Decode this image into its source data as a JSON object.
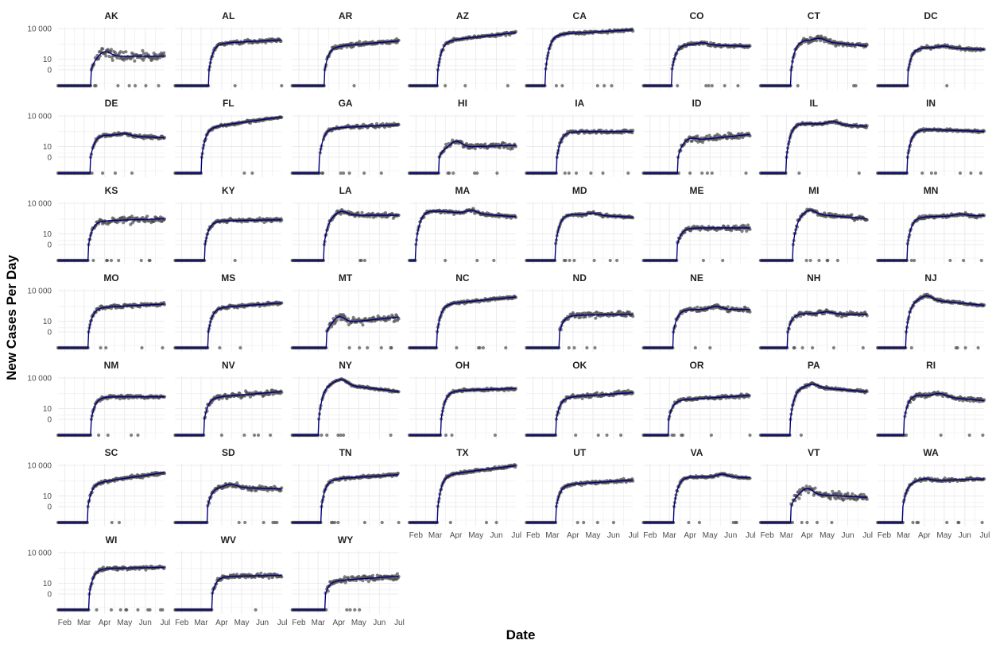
{
  "chart_data": {
    "type": "scatter",
    "xlabel": "Date",
    "ylabel": "New Cases Per Day",
    "y_scale": "pseudo-log",
    "y_ticks": [
      0,
      10,
      10000
    ],
    "y_tick_labels": [
      "0",
      "10",
      "10 000"
    ],
    "x_ticks": [
      "2020-02-01",
      "2020-03-01",
      "2020-04-01",
      "2020-05-01",
      "2020-06-01",
      "2020-07-01"
    ],
    "x_tick_labels": [
      "Feb",
      "Mar",
      "Apr",
      "May",
      "Jun",
      "Jul"
    ],
    "xlim": [
      "2020-01-22",
      "2020-06-30"
    ],
    "grid": true,
    "series_colors": {
      "points": "#4d4d4d",
      "smooth_line": "#000080",
      "grid": "#ebebeb"
    },
    "panels": [
      {
        "state": "AK",
        "onset": "2020-03-12",
        "plateau": 20,
        "peak": "2020-04-01",
        "ampl": 0.5,
        "noise": 0.4,
        "trend": 0
      },
      {
        "state": "AL",
        "onset": "2020-03-13",
        "plateau": 400,
        "peak": null,
        "ampl": 0,
        "noise": 0.15,
        "trend": 0.3
      },
      {
        "state": "AR",
        "onset": "2020-03-11",
        "plateau": 200,
        "peak": null,
        "ampl": 0,
        "noise": 0.2,
        "trend": 0.5
      },
      {
        "state": "AZ",
        "onset": "2020-03-05",
        "plateau": 800,
        "peak": null,
        "ampl": 0,
        "noise": 0.15,
        "trend": 0.7
      },
      {
        "state": "CA",
        "onset": "2020-02-20",
        "plateau": 3000,
        "peak": null,
        "ampl": 0,
        "noise": 0.12,
        "trend": 0.4
      },
      {
        "state": "CO",
        "onset": "2020-03-05",
        "plateau": 300,
        "peak": "2020-04-20",
        "ampl": 0.2,
        "noise": 0.15,
        "trend": -0.2
      },
      {
        "state": "CT",
        "onset": "2020-03-08",
        "plateau": 800,
        "peak": "2020-04-20",
        "ampl": 0.3,
        "noise": 0.2,
        "trend": -0.6
      },
      {
        "state": "DC",
        "onset": "2020-03-08",
        "plateau": 150,
        "peak": "2020-05-01",
        "ampl": 0.2,
        "noise": 0.15,
        "trend": -0.2
      },
      {
        "state": "DE",
        "onset": "2020-03-11",
        "plateau": 150,
        "peak": "2020-05-01",
        "ampl": 0.2,
        "noise": 0.15,
        "trend": -0.3
      },
      {
        "state": "FL",
        "onset": "2020-03-02",
        "plateau": 1000,
        "peak": null,
        "ampl": 0,
        "noise": 0.12,
        "trend": 0.9
      },
      {
        "state": "GA",
        "onset": "2020-03-03",
        "plateau": 700,
        "peak": null,
        "ampl": 0,
        "noise": 0.15,
        "trend": 0.3
      },
      {
        "state": "HI",
        "onset": "2020-03-07",
        "plateau": 8,
        "peak": "2020-04-01",
        "ampl": 0.6,
        "noise": 0.3,
        "trend": 0.2
      },
      {
        "state": "IA",
        "onset": "2020-03-08",
        "plateau": 300,
        "peak": null,
        "ampl": 0,
        "noise": 0.15,
        "trend": 0
      },
      {
        "state": "ID",
        "onset": "2020-03-14",
        "plateau": 40,
        "peak": "2020-04-01",
        "ampl": 0.3,
        "noise": 0.3,
        "trend": 0.6
      },
      {
        "state": "IL",
        "onset": "2020-03-01",
        "plateau": 2000,
        "peak": "2020-05-10",
        "ampl": 0.3,
        "noise": 0.12,
        "trend": -0.3
      },
      {
        "state": "IN",
        "onset": "2020-03-07",
        "plateau": 500,
        "peak": null,
        "ampl": 0,
        "noise": 0.12,
        "trend": -0.2
      },
      {
        "state": "KS",
        "onset": "2020-03-08",
        "plateau": 200,
        "peak": null,
        "ampl": 0,
        "noise": 0.3,
        "trend": 0.2
      },
      {
        "state": "KY",
        "onset": "2020-03-07",
        "plateau": 200,
        "peak": null,
        "ampl": 0,
        "noise": 0.15,
        "trend": 0.1
      },
      {
        "state": "LA",
        "onset": "2020-03-10",
        "plateau": 700,
        "peak": "2020-04-05",
        "ampl": 0.4,
        "noise": 0.2,
        "trend": 0
      },
      {
        "state": "MA",
        "onset": "2020-02-01",
        "plateau": 2000,
        "peak": "2020-04-25",
        "ampl": 0.3,
        "noise": 0.15,
        "trend": -0.6
      },
      {
        "state": "MD",
        "onset": "2020-03-06",
        "plateau": 900,
        "peak": "2020-05-01",
        "ampl": 0.2,
        "noise": 0.12,
        "trend": -0.3
      },
      {
        "state": "ME",
        "onset": "2020-03-13",
        "plateau": 40,
        "peak": null,
        "ampl": 0,
        "noise": 0.25,
        "trend": 0
      },
      {
        "state": "MI",
        "onset": "2020-03-11",
        "plateau": 1000,
        "peak": "2020-04-05",
        "ampl": 0.4,
        "noise": 0.2,
        "trend": -0.5
      },
      {
        "state": "MN",
        "onset": "2020-03-07",
        "plateau": 500,
        "peak": "2020-05-25",
        "ampl": 0.2,
        "noise": 0.15,
        "trend": 0.1
      },
      {
        "state": "MO",
        "onset": "2020-03-08",
        "plateau": 250,
        "peak": null,
        "ampl": 0,
        "noise": 0.15,
        "trend": 0.3
      },
      {
        "state": "MS",
        "onset": "2020-03-12",
        "plateau": 250,
        "peak": null,
        "ampl": 0,
        "noise": 0.15,
        "trend": 0.4
      },
      {
        "state": "MT",
        "onset": "2020-03-14",
        "plateau": 6,
        "peak": "2020-04-01",
        "ampl": 0.7,
        "noise": 0.35,
        "trend": 0.6
      },
      {
        "state": "NC",
        "onset": "2020-03-04",
        "plateau": 600,
        "peak": null,
        "ampl": 0,
        "noise": 0.12,
        "trend": 0.6
      },
      {
        "state": "ND",
        "onset": "2020-03-12",
        "plateau": 40,
        "peak": null,
        "ampl": 0,
        "noise": 0.25,
        "trend": 0.1
      },
      {
        "state": "NE",
        "onset": "2020-03-07",
        "plateau": 150,
        "peak": "2020-05-10",
        "ampl": 0.3,
        "noise": 0.2,
        "trend": 0
      },
      {
        "state": "NH",
        "onset": "2020-03-03",
        "plateau": 60,
        "peak": "2020-05-01",
        "ampl": 0.2,
        "noise": 0.2,
        "trend": -0.1
      },
      {
        "state": "NJ",
        "onset": "2020-03-05",
        "plateau": 1500,
        "peak": "2020-04-05",
        "ampl": 0.4,
        "noise": 0.12,
        "trend": -0.6
      },
      {
        "state": "NM",
        "onset": "2020-03-12",
        "plateau": 150,
        "peak": null,
        "ampl": 0,
        "noise": 0.15,
        "trend": 0
      },
      {
        "state": "NV",
        "onset": "2020-03-06",
        "plateau": 150,
        "peak": null,
        "ampl": 0,
        "noise": 0.25,
        "trend": 0.5
      },
      {
        "state": "NY",
        "onset": "2020-03-02",
        "plateau": 3000,
        "peak": "2020-04-05",
        "ampl": 0.5,
        "noise": 0.1,
        "trend": -0.8
      },
      {
        "state": "OH",
        "onset": "2020-03-10",
        "plateau": 600,
        "peak": null,
        "ampl": 0,
        "noise": 0.12,
        "trend": 0.2
      },
      {
        "state": "OK",
        "onset": "2020-03-07",
        "plateau": 150,
        "peak": null,
        "ampl": 0,
        "noise": 0.2,
        "trend": 0.4
      },
      {
        "state": "OR",
        "onset": "2020-02-29",
        "plateau": 80,
        "peak": null,
        "ampl": 0,
        "noise": 0.15,
        "trend": 0.4
      },
      {
        "state": "PA",
        "onset": "2020-03-07",
        "plateau": 1500,
        "peak": "2020-04-10",
        "ampl": 0.3,
        "noise": 0.12,
        "trend": -0.5
      },
      {
        "state": "RI",
        "onset": "2020-03-02",
        "plateau": 250,
        "peak": "2020-04-25",
        "ampl": 0.3,
        "noise": 0.2,
        "trend": -0.6
      },
      {
        "state": "SC",
        "onset": "2020-03-07",
        "plateau": 250,
        "peak": null,
        "ampl": 0,
        "noise": 0.15,
        "trend": 0.9
      },
      {
        "state": "SD",
        "onset": "2020-03-11",
        "plateau": 80,
        "peak": "2020-04-15",
        "ampl": 0.3,
        "noise": 0.2,
        "trend": -0.2
      },
      {
        "state": "TN",
        "onset": "2020-03-06",
        "plateau": 500,
        "peak": null,
        "ampl": 0,
        "noise": 0.15,
        "trend": 0.4
      },
      {
        "state": "TX",
        "onset": "2020-03-05",
        "plateau": 1500,
        "peak": null,
        "ampl": 0,
        "noise": 0.12,
        "trend": 0.8
      },
      {
        "state": "UT",
        "onset": "2020-03-07",
        "plateau": 150,
        "peak": null,
        "ampl": 0,
        "noise": 0.15,
        "trend": 0.4
      },
      {
        "state": "VA",
        "onset": "2020-03-08",
        "plateau": 800,
        "peak": "2020-05-20",
        "ampl": 0.3,
        "noise": 0.12,
        "trend": -0.1
      },
      {
        "state": "VT",
        "onset": "2020-03-08",
        "plateau": 15,
        "peak": "2020-04-01",
        "ampl": 0.6,
        "noise": 0.35,
        "trend": -0.3
      },
      {
        "state": "WA",
        "onset": "2020-02-29",
        "plateau": 300,
        "peak": "2020-04-01",
        "ampl": 0.2,
        "noise": 0.15,
        "trend": 0.2
      },
      {
        "state": "WI",
        "onset": "2020-03-09",
        "plateau": 300,
        "peak": null,
        "ampl": 0,
        "noise": 0.15,
        "trend": 0.1
      },
      {
        "state": "WV",
        "onset": "2020-03-18",
        "plateau": 50,
        "peak": null,
        "ampl": 0,
        "noise": 0.2,
        "trend": 0.1
      },
      {
        "state": "WY",
        "onset": "2020-03-12",
        "plateau": 20,
        "peak": null,
        "ampl": 0,
        "noise": 0.3,
        "trend": 0.4
      }
    ]
  }
}
